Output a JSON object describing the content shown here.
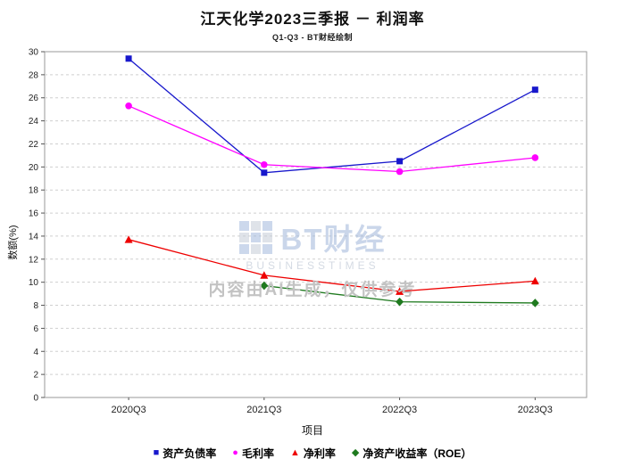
{
  "chart_data": {
    "type": "line",
    "title": "江天化学2023三季报 － 利润率",
    "subtitle": "Q1-Q3 - BT财经绘制",
    "xlabel": "项目",
    "ylabel": "数额(%)",
    "categories": [
      "2020Q3",
      "2021Q3",
      "2022Q3",
      "2023Q3"
    ],
    "series": [
      {
        "name": "资产负债率",
        "marker": "square",
        "color": "#1818cc",
        "values": [
          29.4,
          19.5,
          20.5,
          26.7
        ]
      },
      {
        "name": "毛利率",
        "marker": "circle",
        "color": "#ff00ff",
        "values": [
          25.3,
          20.2,
          19.6,
          20.8
        ]
      },
      {
        "name": "净利率",
        "marker": "triangle",
        "color": "#ee0000",
        "values": [
          13.7,
          10.6,
          9.2,
          10.1
        ]
      },
      {
        "name": "净资产收益率（ROE）",
        "marker": "diamond",
        "color": "#1f7a1f",
        "values": [
          null,
          9.7,
          8.3,
          8.2
        ]
      }
    ],
    "ylim": [
      0,
      30
    ],
    "ytick_step": 2,
    "grid": true,
    "legend_position": "bottom"
  },
  "marker_glyphs": {
    "square": "■",
    "circle": "●",
    "triangle": "▲",
    "diamond": "◆"
  },
  "watermark": {
    "logo_text": "BT财经",
    "logo_sub": "BUSINESSTIMES",
    "ai_note": "内容由AI生成，仅供参考"
  }
}
